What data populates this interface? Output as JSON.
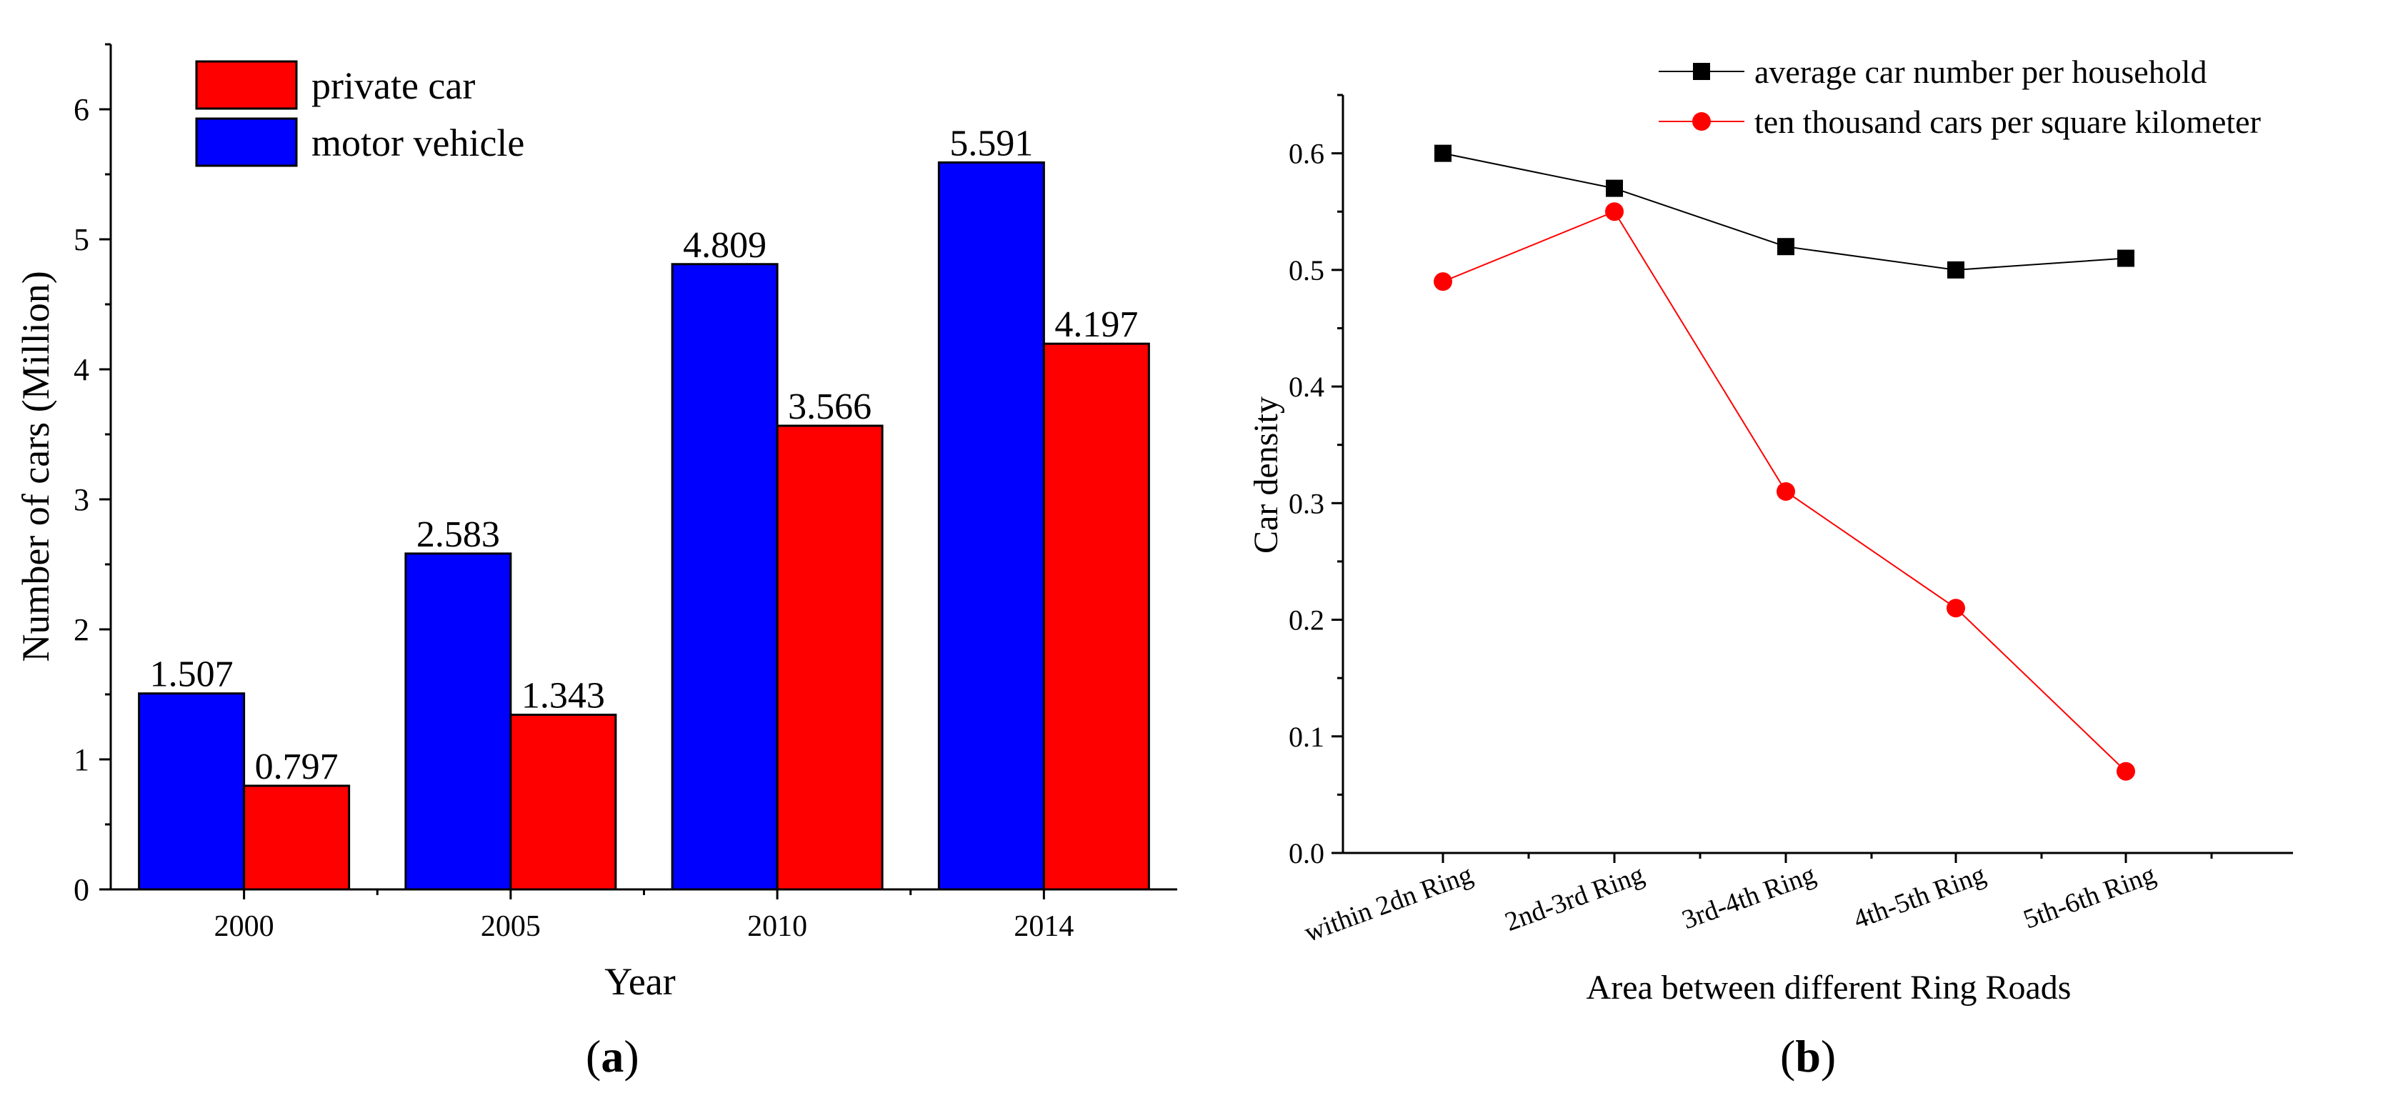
{
  "chart_data": [
    {
      "type": "bar",
      "panel_label": "a",
      "xlabel": "Year",
      "ylabel": "Number of cars (Million)",
      "categories": [
        "2000",
        "2005",
        "2010",
        "2014"
      ],
      "ylim": [
        0,
        6.5
      ],
      "yticks": [
        "0",
        "1",
        "2",
        "3",
        "4",
        "5",
        "6"
      ],
      "series": [
        {
          "name": "motor vehicle",
          "color": "#0000ff",
          "values": [
            1.507,
            2.583,
            4.809,
            5.591
          ],
          "labels": [
            "1.507",
            "2.583",
            "4.809",
            "5.591"
          ]
        },
        {
          "name": "private car",
          "color": "#ff0000",
          "values": [
            0.797,
            1.343,
            3.566,
            4.197
          ],
          "labels": [
            "0.797",
            "1.343",
            "3.566",
            "4.197"
          ]
        }
      ],
      "legend": {
        "position": "top-left",
        "order": [
          "private car",
          "motor vehicle"
        ]
      }
    },
    {
      "type": "line",
      "panel_label": "b",
      "xlabel": "Area between different Ring Roads",
      "ylabel": "Car density",
      "categories": [
        "within 2dn Ring",
        "2nd-3rd Ring",
        "3rd-4th Ring",
        "4th-5th Ring",
        "5th-6th Ring"
      ],
      "ylim": [
        0,
        0.65
      ],
      "yticks": [
        "0.0",
        "0.1",
        "0.2",
        "0.3",
        "0.4",
        "0.5",
        "0.6"
      ],
      "series": [
        {
          "name": "average car number per household",
          "color": "#000000",
          "marker": "square",
          "values": [
            0.6,
            0.57,
            0.52,
            0.5,
            0.51
          ]
        },
        {
          "name": "ten thousand cars per square kilometer",
          "color": "#ff0000",
          "marker": "circle",
          "values": [
            0.49,
            0.55,
            0.31,
            0.21,
            0.07
          ]
        }
      ],
      "legend": {
        "position": "top-right"
      }
    }
  ]
}
